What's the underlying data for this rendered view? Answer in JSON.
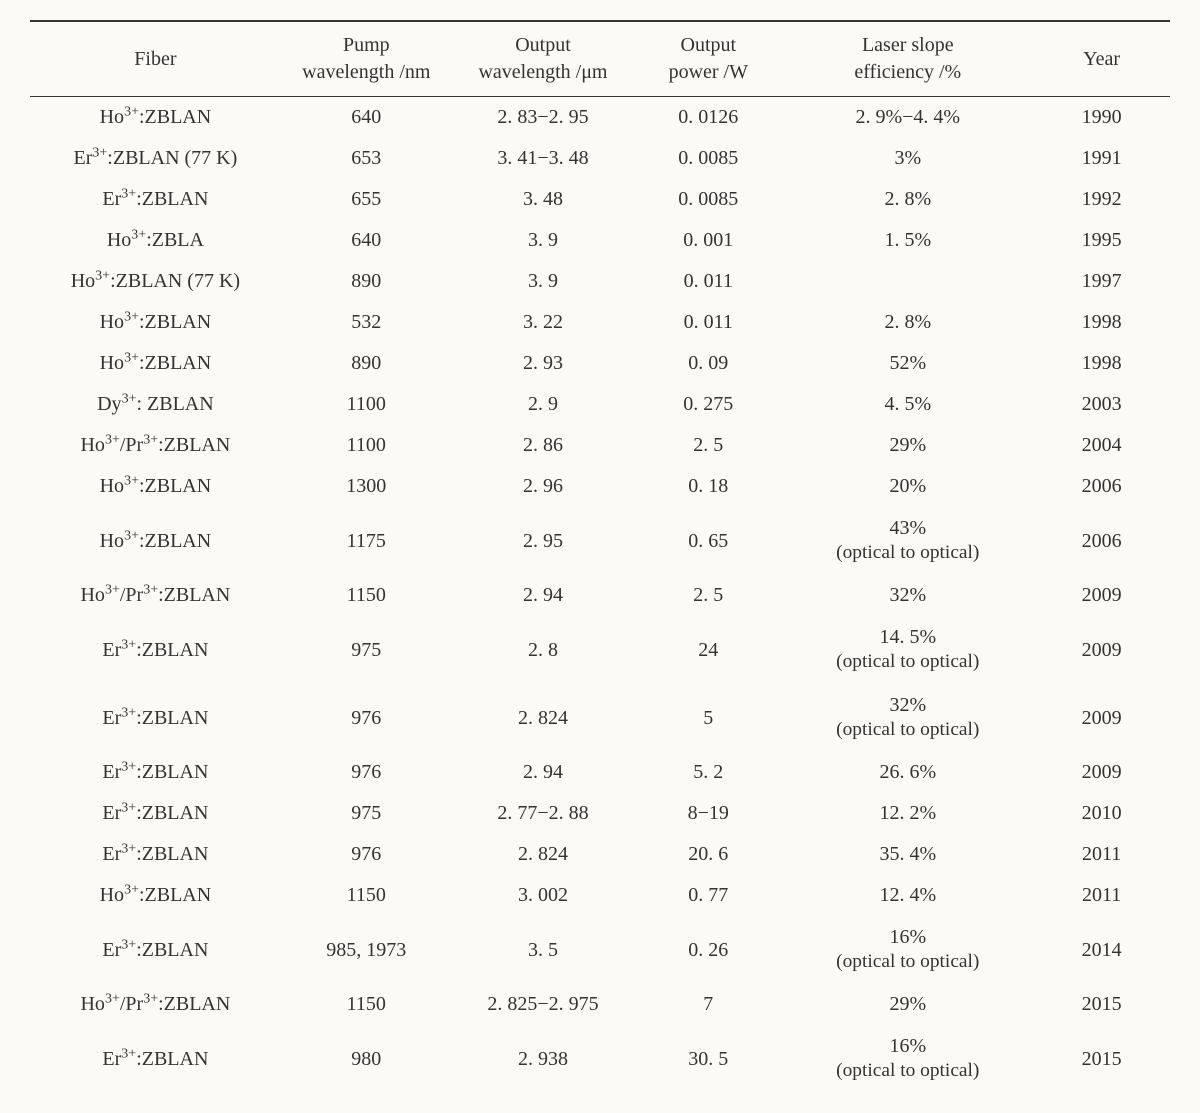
{
  "typography": {
    "font_family": "Times New Roman, serif",
    "base_fontsize_pt": 15
  },
  "colors": {
    "background": "#fbfaf6",
    "text": "#333333",
    "rule": "#333333"
  },
  "table": {
    "type": "table",
    "columns": [
      {
        "label_line1": "Fiber",
        "label_line2": "",
        "width_pct": 22,
        "align": "center"
      },
      {
        "label_line1": "Pump",
        "label_line2": "wavelength /nm",
        "width_pct": 15,
        "align": "center"
      },
      {
        "label_line1": "Output",
        "label_line2": "wavelength /μm",
        "width_pct": 16,
        "align": "center"
      },
      {
        "label_line1": "Output",
        "label_line2": "power /W",
        "width_pct": 13,
        "align": "center"
      },
      {
        "label_line1": "Laser slope",
        "label_line2": "efficiency /%",
        "width_pct": 22,
        "align": "center"
      },
      {
        "label_line1": "Year",
        "label_line2": "",
        "width_pct": 12,
        "align": "center"
      }
    ],
    "rows": [
      {
        "fiber_pre": "Ho",
        "fiber_sup": "3+",
        "fiber_post": ":ZBLAN",
        "pump_nm": "640",
        "out_um": "2. 83−2. 95",
        "power_w": "0. 0126",
        "eff": "2. 9%−4. 4%",
        "eff_sub": "",
        "year": "1990"
      },
      {
        "fiber_pre": "Er",
        "fiber_sup": "3+",
        "fiber_post": ":ZBLAN (77 K)",
        "pump_nm": "653",
        "out_um": "3. 41−3. 48",
        "power_w": "0. 0085",
        "eff": "3%",
        "eff_sub": "",
        "year": "1991"
      },
      {
        "fiber_pre": "Er",
        "fiber_sup": "3+",
        "fiber_post": ":ZBLAN",
        "pump_nm": "655",
        "out_um": "3. 48",
        "power_w": "0. 0085",
        "eff": "2. 8%",
        "eff_sub": "",
        "year": "1992"
      },
      {
        "fiber_pre": "Ho",
        "fiber_sup": "3+",
        "fiber_post": ":ZBLA",
        "pump_nm": "640",
        "out_um": "3. 9",
        "power_w": "0. 001",
        "eff": "1. 5%",
        "eff_sub": "",
        "year": "1995"
      },
      {
        "fiber_pre": "Ho",
        "fiber_sup": "3+",
        "fiber_post": ":ZBLAN (77 K)",
        "pump_nm": "890",
        "out_um": "3. 9",
        "power_w": "0. 011",
        "eff": "",
        "eff_sub": "",
        "year": "1997"
      },
      {
        "fiber_pre": "Ho",
        "fiber_sup": "3+",
        "fiber_post": ":ZBLAN",
        "pump_nm": "532",
        "out_um": "3. 22",
        "power_w": "0. 011",
        "eff": "2. 8%",
        "eff_sub": "",
        "year": "1998"
      },
      {
        "fiber_pre": "Ho",
        "fiber_sup": "3+",
        "fiber_post": ":ZBLAN",
        "pump_nm": "890",
        "out_um": "2. 93",
        "power_w": "0. 09",
        "eff": "52%",
        "eff_sub": "",
        "year": "1998"
      },
      {
        "fiber_pre": "Dy",
        "fiber_sup": "3+",
        "fiber_post": ": ZBLAN",
        "pump_nm": "1100",
        "out_um": "2. 9",
        "power_w": "0. 275",
        "eff": "4. 5%",
        "eff_sub": "",
        "year": "2003"
      },
      {
        "fiber_pre": "Ho",
        "fiber_sup": "3+",
        "fiber_mid": "/Pr",
        "fiber_sup2": "3+",
        "fiber_post": ":ZBLAN",
        "pump_nm": "1100",
        "out_um": "2. 86",
        "power_w": "2. 5",
        "eff": "29%",
        "eff_sub": "",
        "year": "2004"
      },
      {
        "fiber_pre": "Ho",
        "fiber_sup": "3+",
        "fiber_post": ":ZBLAN",
        "pump_nm": "1300",
        "out_um": "2. 96",
        "power_w": "0. 18",
        "eff": "20%",
        "eff_sub": "",
        "year": "2006"
      },
      {
        "fiber_pre": "Ho",
        "fiber_sup": "3+",
        "fiber_post": ":ZBLAN",
        "pump_nm": "1175",
        "out_um": "2. 95",
        "power_w": "0. 65",
        "eff": "43%",
        "eff_sub": "(optical to optical)",
        "year": "2006"
      },
      {
        "fiber_pre": "Ho",
        "fiber_sup": "3+",
        "fiber_mid": "/Pr",
        "fiber_sup2": "3+",
        "fiber_post": ":ZBLAN",
        "pump_nm": "1150",
        "out_um": "2. 94",
        "power_w": "2. 5",
        "eff": "32%",
        "eff_sub": "",
        "year": "2009"
      },
      {
        "fiber_pre": "Er",
        "fiber_sup": "3+",
        "fiber_post": ":ZBLAN",
        "pump_nm": "975",
        "out_um": "2. 8",
        "power_w": "24",
        "eff": "14. 5%",
        "eff_sub": "(optical to optical)",
        "year": "2009"
      },
      {
        "fiber_pre": "Er",
        "fiber_sup": "3+",
        "fiber_post": ":ZBLAN",
        "pump_nm": "976",
        "out_um": "2. 824",
        "power_w": "5",
        "eff": "32%",
        "eff_sub": "(optical to optical)",
        "year": "2009"
      },
      {
        "fiber_pre": "Er",
        "fiber_sup": "3+",
        "fiber_post": ":ZBLAN",
        "pump_nm": "976",
        "out_um": "2. 94",
        "power_w": "5. 2",
        "eff": "26. 6%",
        "eff_sub": "",
        "year": "2009"
      },
      {
        "fiber_pre": "Er",
        "fiber_sup": "3+",
        "fiber_post": ":ZBLAN",
        "pump_nm": "975",
        "out_um": "2. 77−2. 88",
        "power_w": "8−19",
        "eff": "12. 2%",
        "eff_sub": "",
        "year": "2010"
      },
      {
        "fiber_pre": "Er",
        "fiber_sup": "3+",
        "fiber_post": ":ZBLAN",
        "pump_nm": "976",
        "out_um": "2. 824",
        "power_w": "20. 6",
        "eff": "35. 4%",
        "eff_sub": "",
        "year": "2011"
      },
      {
        "fiber_pre": "Ho",
        "fiber_sup": "3+",
        "fiber_post": ":ZBLAN",
        "pump_nm": "1150",
        "out_um": "3. 002",
        "power_w": "0. 77",
        "eff": "12. 4%",
        "eff_sub": "",
        "year": "2011"
      },
      {
        "fiber_pre": "Er",
        "fiber_sup": "3+",
        "fiber_post": ":ZBLAN",
        "pump_nm": "985, 1973",
        "out_um": "3. 5",
        "power_w": "0. 26",
        "eff": "16%",
        "eff_sub": "(optical to optical)",
        "year": "2014"
      },
      {
        "fiber_pre": "Ho",
        "fiber_sup": "3+",
        "fiber_mid": "/Pr",
        "fiber_sup2": "3+",
        "fiber_post": ":ZBLAN",
        "pump_nm": "1150",
        "out_um": "2. 825−2. 975",
        "power_w": "7",
        "eff": "29%",
        "eff_sub": "",
        "year": "2015"
      },
      {
        "fiber_pre": "Er",
        "fiber_sup": "3+",
        "fiber_post": ":ZBLAN",
        "pump_nm": "980",
        "out_um": "2. 938",
        "power_w": "30. 5",
        "eff": "16%",
        "eff_sub": "(optical to optical)",
        "year": "2015"
      }
    ]
  }
}
